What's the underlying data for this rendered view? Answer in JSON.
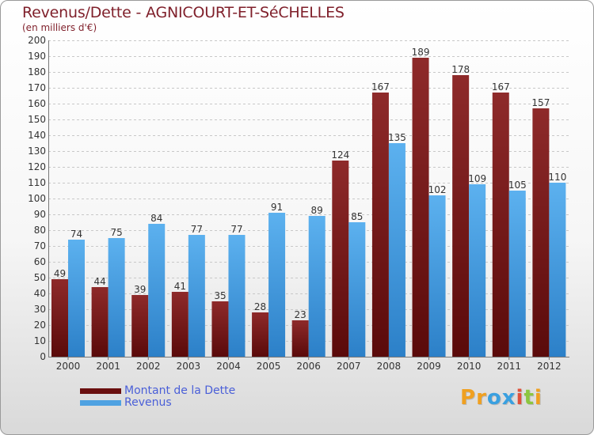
{
  "chart_data": {
    "type": "bar",
    "title": "Revenus/Dette - AGNICOURT-ET-SéCHELLES",
    "subtitle": "(en milliers d'€)",
    "categories": [
      "2000",
      "2001",
      "2002",
      "2003",
      "2004",
      "2005",
      "2006",
      "2007",
      "2008",
      "2009",
      "2010",
      "2011",
      "2012"
    ],
    "series": [
      {
        "name": "Montant de la Dette",
        "values": [
          49,
          44,
          39,
          41,
          35,
          28,
          23,
          124,
          167,
          189,
          178,
          167,
          157
        ],
        "color": "#7b1818"
      },
      {
        "name": "Revenus",
        "values": [
          74,
          75,
          84,
          77,
          77,
          91,
          89,
          85,
          135,
          102,
          109,
          105,
          110
        ],
        "color": "#4fa2e2"
      }
    ],
    "ylim": [
      0,
      200
    ],
    "yticks": [
      0,
      10,
      20,
      30,
      40,
      50,
      60,
      70,
      80,
      90,
      100,
      110,
      120,
      130,
      140,
      150,
      160,
      170,
      180,
      190,
      200
    ],
    "grid": true,
    "legend_position": "bottom-left"
  },
  "brand": {
    "logo_letters": [
      "P",
      "r",
      "o",
      "x",
      "i",
      "t",
      "i"
    ],
    "logo_colors": [
      "#f0a020",
      "#f0a020",
      "#3aa0e0",
      "#3aa0e0",
      "#e0503a",
      "#8cc63f",
      "#f0a020"
    ]
  }
}
